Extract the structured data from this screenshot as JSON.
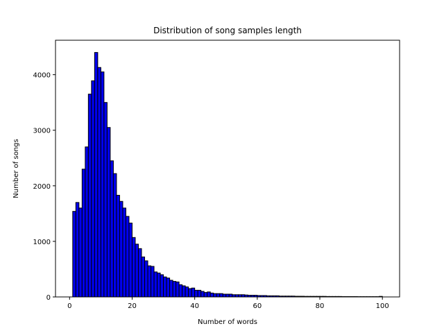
{
  "chart_data": {
    "type": "bar",
    "title": "Distribution of song samples length",
    "xlabel": "Number of words",
    "ylabel": "Number of songs",
    "bar_color": "#0000ee",
    "edge_color": "#000000",
    "grid": false,
    "xlim": [
      -4.5,
      105.5
    ],
    "ylim": [
      0,
      4620
    ],
    "xticks": [
      0,
      20,
      40,
      60,
      80,
      100
    ],
    "yticks": [
      0,
      1000,
      2000,
      3000,
      4000
    ],
    "bin_width": 1,
    "x": [
      1,
      2,
      3,
      4,
      5,
      6,
      7,
      8,
      9,
      10,
      11,
      12,
      13,
      14,
      15,
      16,
      17,
      18,
      19,
      20,
      21,
      22,
      23,
      24,
      25,
      26,
      27,
      28,
      29,
      30,
      31,
      32,
      33,
      34,
      35,
      36,
      37,
      38,
      39,
      40,
      41,
      42,
      43,
      44,
      45,
      46,
      47,
      48,
      49,
      50,
      51,
      52,
      53,
      54,
      55,
      56,
      57,
      58,
      59,
      60,
      61,
      62,
      63,
      64,
      65,
      66,
      67,
      68,
      69,
      70,
      71,
      72,
      73,
      74,
      75,
      76,
      77,
      78,
      79,
      80,
      81,
      82,
      83,
      84,
      85,
      86,
      87,
      88,
      89,
      90,
      91,
      92,
      93,
      94,
      95,
      96,
      97,
      98,
      99
    ],
    "values": [
      1540,
      1700,
      1600,
      2300,
      2700,
      3650,
      3890,
      4400,
      4130,
      4050,
      3500,
      3050,
      2450,
      2220,
      1830,
      1720,
      1600,
      1450,
      1330,
      1070,
      950,
      870,
      720,
      650,
      560,
      550,
      450,
      430,
      400,
      360,
      340,
      300,
      280,
      270,
      220,
      200,
      180,
      150,
      160,
      120,
      120,
      100,
      80,
      90,
      70,
      60,
      60,
      60,
      50,
      50,
      50,
      40,
      40,
      40,
      40,
      35,
      30,
      30,
      30,
      25,
      25,
      25,
      20,
      20,
      20,
      20,
      15,
      15,
      15,
      15,
      15,
      12,
      12,
      12,
      10,
      10,
      10,
      10,
      10,
      10,
      10,
      8,
      8,
      8,
      8,
      8,
      6,
      6,
      6,
      6,
      6,
      5,
      5,
      5,
      5,
      5,
      5,
      5,
      10
    ]
  }
}
